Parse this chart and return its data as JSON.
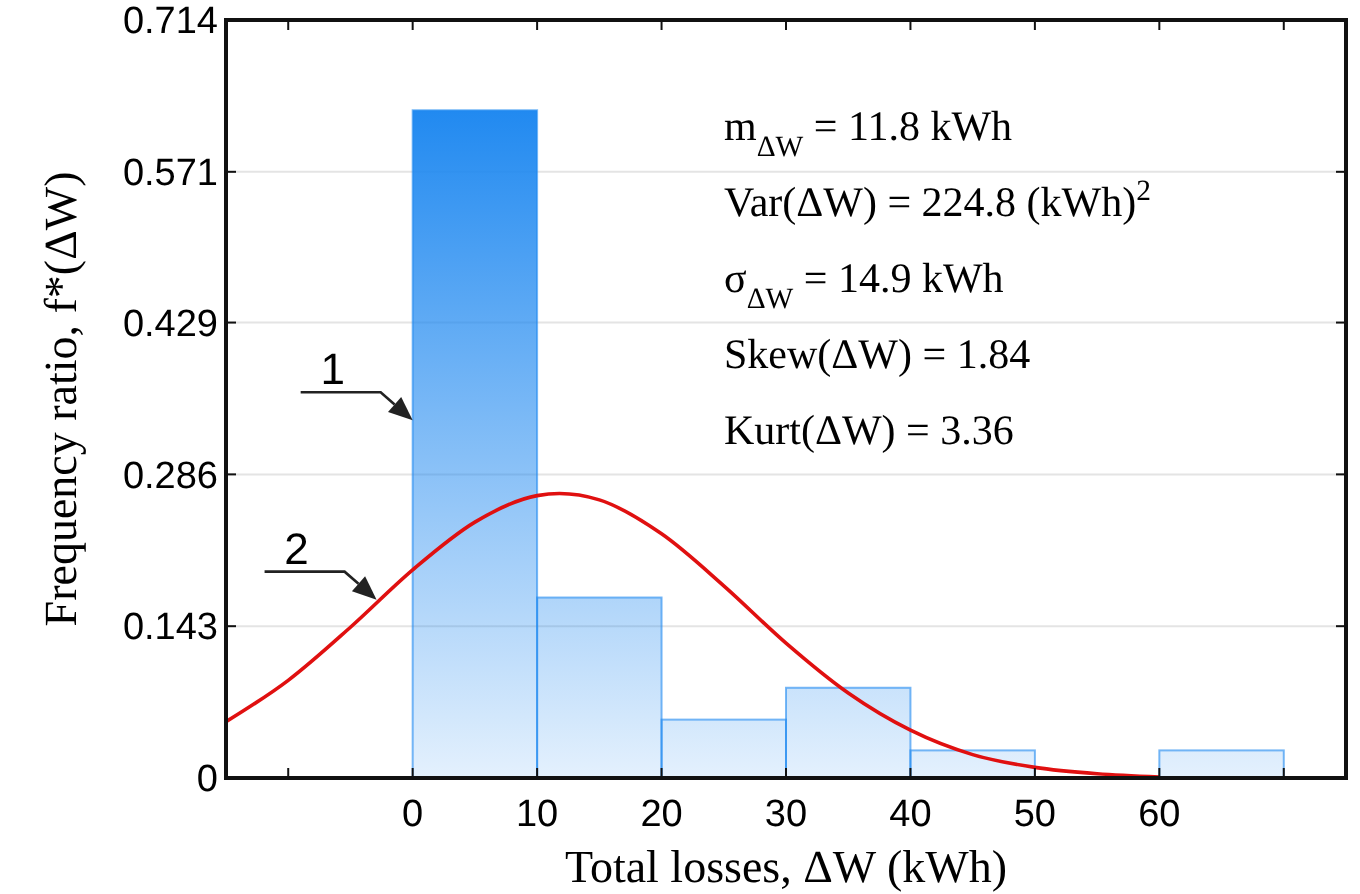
{
  "chart_data": {
    "type": "histogram",
    "xlabel": "Total losses, ΔW   (kWh)",
    "ylabel": "Frequency ratio, f*(ΔW)",
    "xlim": [
      -15,
      75
    ],
    "xticks": [
      {
        "value": -10,
        "label": null
      },
      0,
      10,
      20,
      30,
      40,
      50,
      60,
      {
        "value": 70,
        "label": null
      }
    ],
    "ylim": [
      0,
      0.714
    ],
    "yticks": [
      0,
      0.143,
      0.286,
      0.429,
      0.571,
      0.714
    ],
    "grid": "y",
    "series": [
      {
        "color": "#1e88f0",
        "bins": [
          0,
          10,
          20,
          30,
          40,
          50,
          60,
          70
        ],
        "values": [
          0.629,
          0.17,
          0.055,
          0.085,
          0.026,
          0,
          0.026
        ]
      },
      {
        "type": "line",
        "color": "#e01010",
        "x": [
          -15,
          -10,
          -5,
          0,
          5,
          10,
          11.8,
          15,
          20,
          25,
          30,
          35,
          40,
          45,
          50,
          55,
          60
        ],
        "values": [
          0.053,
          0.092,
          0.142,
          0.196,
          0.241,
          0.266,
          0.268,
          0.262,
          0.23,
          0.181,
          0.127,
          0.08,
          0.045,
          0.022,
          0.01,
          0.004,
          0.001
        ]
      }
    ],
    "annotations": [
      "m$_{ΔW}$ = 11.8 kWh",
      "Var(ΔW) = 224.8 (kWh)$^{2}$",
      "σ$_{ΔW}$ = 14.9 kWh",
      "Skew(ΔW) = 1.84",
      "Kurt(ΔW) = 3.36",
      {
        "text": "1",
        "x": 0,
        "y": 0.337
      },
      {
        "text": "2",
        "x": -2.9,
        "y": 0.168
      }
    ]
  }
}
